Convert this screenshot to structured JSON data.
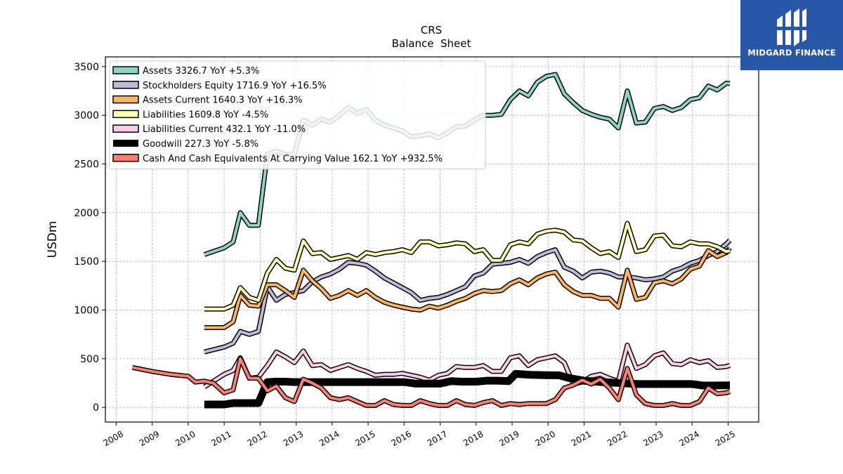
{
  "brand": {
    "name": "MIDGARD FINANCE",
    "bg_color": "#2a56a8"
  },
  "chart_data": {
    "type": "line",
    "title": "CRS",
    "subtitle": "Balance  Sheet",
    "ylabel": "USDm",
    "xlabel": "",
    "xlim": [
      2007.7,
      2025.85
    ],
    "ylim": [
      -150,
      3600
    ],
    "yticks": [
      0,
      500,
      1000,
      1500,
      2000,
      2500,
      3000,
      3500
    ],
    "xticks": [
      "2008",
      "2009",
      "2010",
      "2011",
      "2012",
      "2013",
      "2014",
      "2015",
      "2016",
      "2017",
      "2018",
      "2019",
      "2020",
      "2021",
      "2022",
      "2023",
      "2024",
      "2025"
    ],
    "grid": true,
    "legend_position": "top-left",
    "series": [
      {
        "name": "Assets  3326.7 YoY +5.3%",
        "color": "#8dd3c7",
        "width": 4,
        "x": [
          2010.45,
          2011.0,
          2011.25,
          2011.45,
          2011.7,
          2011.95,
          2012.2,
          2012.45,
          2012.7,
          2012.95,
          2013.2,
          2013.45,
          2013.7,
          2013.95,
          2014.2,
          2014.45,
          2014.7,
          2014.95,
          2015.2,
          2015.45,
          2015.7,
          2015.95,
          2016.2,
          2016.45,
          2016.7,
          2016.95,
          2017.2,
          2017.45,
          2017.7,
          2017.95,
          2018.2,
          2018.45,
          2018.7,
          2018.95,
          2019.2,
          2019.45,
          2019.7,
          2019.95,
          2020.2,
          2020.45,
          2020.7,
          2020.95,
          2021.2,
          2021.45,
          2021.7,
          2021.95,
          2022.2,
          2022.45,
          2022.7,
          2022.95,
          2023.2,
          2023.45,
          2023.7,
          2023.95,
          2024.2,
          2024.45,
          2024.7,
          2024.95,
          2025.05
        ],
        "y": [
          1570,
          1640,
          1700,
          2000,
          1870,
          1870,
          2600,
          2630,
          2600,
          2600,
          2950,
          2900,
          2960,
          2930,
          3000,
          3080,
          3020,
          3060,
          2950,
          2900,
          2870,
          2840,
          2780,
          2790,
          2810,
          2770,
          2820,
          2880,
          2890,
          2950,
          3000,
          3000,
          3010,
          3160,
          3250,
          3200,
          3340,
          3400,
          3420,
          3220,
          3130,
          3050,
          3010,
          2980,
          2960,
          2870,
          3250,
          2920,
          2930,
          3070,
          3090,
          3050,
          3080,
          3160,
          3180,
          3300,
          3260,
          3330,
          3327
        ]
      },
      {
        "name": "Stockholders Equity  1716.9 YoY +16.5%",
        "color": "#bebada",
        "width": 4,
        "x": [
          2010.45,
          2011.0,
          2011.25,
          2011.45,
          2011.7,
          2011.95,
          2012.2,
          2012.45,
          2012.7,
          2012.95,
          2013.2,
          2013.45,
          2013.7,
          2013.95,
          2014.2,
          2014.45,
          2014.7,
          2014.95,
          2015.2,
          2015.45,
          2015.7,
          2015.95,
          2016.2,
          2016.45,
          2016.7,
          2016.95,
          2017.2,
          2017.45,
          2017.7,
          2017.95,
          2018.2,
          2018.45,
          2018.7,
          2018.95,
          2019.2,
          2019.45,
          2019.7,
          2019.95,
          2020.2,
          2020.45,
          2020.7,
          2020.95,
          2021.2,
          2021.45,
          2021.7,
          2021.95,
          2022.2,
          2022.45,
          2022.7,
          2022.95,
          2023.2,
          2023.45,
          2023.7,
          2023.95,
          2024.2,
          2024.45,
          2024.7,
          2024.95,
          2025.05
        ],
        "y": [
          570,
          620,
          660,
          780,
          750,
          780,
          1240,
          1100,
          1160,
          1180,
          1200,
          1290,
          1340,
          1370,
          1420,
          1490,
          1480,
          1460,
          1400,
          1330,
          1280,
          1230,
          1180,
          1100,
          1120,
          1130,
          1160,
          1200,
          1240,
          1350,
          1380,
          1470,
          1480,
          1490,
          1520,
          1480,
          1550,
          1590,
          1620,
          1440,
          1400,
          1330,
          1390,
          1400,
          1380,
          1340,
          1340,
          1330,
          1310,
          1320,
          1340,
          1400,
          1430,
          1480,
          1510,
          1560,
          1600,
          1680,
          1717
        ]
      },
      {
        "name": "Assets Current  1640.3 YoY +16.3%",
        "color": "#fdb462",
        "width": 4,
        "x": [
          2010.45,
          2011.0,
          2011.25,
          2011.45,
          2011.7,
          2011.95,
          2012.2,
          2012.45,
          2012.7,
          2012.95,
          2013.2,
          2013.45,
          2013.7,
          2013.95,
          2014.2,
          2014.45,
          2014.7,
          2014.95,
          2015.2,
          2015.45,
          2015.7,
          2015.95,
          2016.2,
          2016.45,
          2016.7,
          2016.95,
          2017.2,
          2017.45,
          2017.7,
          2017.95,
          2018.2,
          2018.45,
          2018.7,
          2018.95,
          2019.2,
          2019.45,
          2019.7,
          2019.95,
          2020.2,
          2020.45,
          2020.7,
          2020.95,
          2021.2,
          2021.45,
          2021.7,
          2021.95,
          2022.2,
          2022.45,
          2022.7,
          2022.95,
          2023.2,
          2023.45,
          2023.7,
          2023.95,
          2024.2,
          2024.45,
          2024.7,
          2024.95,
          2025.05
        ],
        "y": [
          820,
          820,
          880,
          1150,
          1050,
          1040,
          1260,
          1260,
          1200,
          1130,
          1410,
          1300,
          1220,
          1120,
          1150,
          1200,
          1150,
          1200,
          1130,
          1080,
          1050,
          1030,
          1010,
          1000,
          1040,
          1020,
          1050,
          1090,
          1120,
          1170,
          1200,
          1190,
          1200,
          1270,
          1310,
          1260,
          1330,
          1370,
          1390,
          1260,
          1190,
          1150,
          1150,
          1120,
          1120,
          1030,
          1410,
          1110,
          1130,
          1280,
          1300,
          1270,
          1320,
          1420,
          1450,
          1610,
          1550,
          1590,
          1640
        ]
      },
      {
        "name": "Liabilities  1609.8 YoY -4.5%",
        "color": "#ffffb3",
        "width": 4,
        "x": [
          2010.45,
          2011.0,
          2011.25,
          2011.45,
          2011.7,
          2011.95,
          2012.2,
          2012.45,
          2012.7,
          2012.95,
          2013.2,
          2013.45,
          2013.7,
          2013.95,
          2014.2,
          2014.45,
          2014.7,
          2014.95,
          2015.2,
          2015.45,
          2015.7,
          2015.95,
          2016.2,
          2016.45,
          2016.7,
          2016.95,
          2017.2,
          2017.45,
          2017.7,
          2017.95,
          2018.2,
          2018.45,
          2018.7,
          2018.95,
          2019.2,
          2019.45,
          2019.7,
          2019.95,
          2020.2,
          2020.45,
          2020.7,
          2020.95,
          2021.2,
          2021.45,
          2021.7,
          2021.95,
          2022.2,
          2022.45,
          2022.7,
          2022.95,
          2023.2,
          2023.45,
          2023.7,
          2023.95,
          2024.2,
          2024.45,
          2024.7,
          2024.95,
          2025.05
        ],
        "y": [
          1010,
          1010,
          1050,
          1230,
          1130,
          1100,
          1380,
          1520,
          1430,
          1410,
          1710,
          1580,
          1590,
          1520,
          1540,
          1560,
          1520,
          1590,
          1570,
          1590,
          1600,
          1620,
          1590,
          1700,
          1700,
          1660,
          1670,
          1690,
          1680,
          1600,
          1620,
          1510,
          1510,
          1670,
          1700,
          1680,
          1780,
          1810,
          1820,
          1800,
          1720,
          1710,
          1640,
          1580,
          1600,
          1540,
          1890,
          1600,
          1620,
          1760,
          1770,
          1660,
          1650,
          1700,
          1680,
          1680,
          1650,
          1600,
          1610
        ]
      },
      {
        "name": "Liabilities Current  432.1 YoY -11.0%",
        "color": "#fccde5",
        "width": 4,
        "x": [
          2010.45,
          2011.0,
          2011.25,
          2011.45,
          2011.7,
          2011.95,
          2012.2,
          2012.45,
          2012.7,
          2012.95,
          2013.2,
          2013.45,
          2013.7,
          2013.95,
          2014.2,
          2014.45,
          2014.7,
          2014.95,
          2015.2,
          2015.45,
          2015.7,
          2015.95,
          2016.2,
          2016.45,
          2016.7,
          2016.95,
          2017.2,
          2017.45,
          2017.7,
          2017.95,
          2018.2,
          2018.45,
          2018.7,
          2018.95,
          2019.2,
          2019.45,
          2019.7,
          2019.95,
          2020.2,
          2020.45,
          2020.7,
          2020.95,
          2021.2,
          2021.45,
          2021.7,
          2021.95,
          2022.2,
          2022.45,
          2022.7,
          2022.95,
          2023.2,
          2023.45,
          2023.7,
          2023.95,
          2024.2,
          2024.45,
          2024.7,
          2024.95,
          2025.05
        ],
        "y": [
          210,
          340,
          380,
          510,
          300,
          310,
          430,
          570,
          520,
          460,
          580,
          430,
          440,
          380,
          410,
          440,
          400,
          370,
          330,
          340,
          340,
          350,
          330,
          310,
          280,
          330,
          350,
          420,
          410,
          410,
          430,
          370,
          370,
          510,
          530,
          430,
          490,
          510,
          530,
          460,
          240,
          260,
          320,
          340,
          300,
          270,
          640,
          400,
          440,
          530,
          560,
          450,
          440,
          490,
          460,
          480,
          410,
          420,
          432
        ]
      },
      {
        "name": "Goodwill  227.3 YoY -5.8%",
        "color": "#000000",
        "width": 8,
        "x": [
          2010.45,
          2011.0,
          2011.25,
          2011.45,
          2011.7,
          2011.95,
          2012.2,
          2012.45,
          2012.7,
          2012.95,
          2013.5,
          2014.0,
          2014.5,
          2015.0,
          2015.5,
          2016.0,
          2016.3,
          2016.6,
          2017.0,
          2017.3,
          2017.6,
          2018.0,
          2018.3,
          2018.6,
          2018.9,
          2019.1,
          2019.5,
          2020.0,
          2020.3,
          2020.6,
          2021.0,
          2021.5,
          2022.0,
          2022.5,
          2023.0,
          2023.5,
          2024.0,
          2024.3,
          2024.6,
          2025.05
        ],
        "y": [
          30,
          30,
          45,
          45,
          45,
          45,
          260,
          265,
          265,
          260,
          260,
          260,
          260,
          260,
          260,
          260,
          245,
          245,
          245,
          270,
          265,
          265,
          275,
          275,
          270,
          345,
          335,
          330,
          330,
          300,
          275,
          260,
          250,
          240,
          240,
          240,
          240,
          225,
          225,
          227
        ]
      },
      {
        "name": "Cash And Cash Equivalents At Carrying Value  162.1 YoY +932.5%",
        "color": "#fb8072",
        "width": 4,
        "x": [
          2008.45,
          2009.0,
          2009.5,
          2010.0,
          2010.2,
          2010.45,
          2010.7,
          2011.0,
          2011.25,
          2011.45,
          2011.7,
          2011.95,
          2012.2,
          2012.45,
          2012.7,
          2012.95,
          2013.2,
          2013.45,
          2013.7,
          2013.95,
          2014.2,
          2014.45,
          2014.7,
          2014.95,
          2015.2,
          2015.45,
          2015.7,
          2015.95,
          2016.2,
          2016.45,
          2016.7,
          2016.95,
          2017.2,
          2017.45,
          2017.7,
          2017.95,
          2018.2,
          2018.45,
          2018.7,
          2018.95,
          2019.2,
          2019.45,
          2019.7,
          2019.95,
          2020.2,
          2020.45,
          2020.7,
          2020.95,
          2021.2,
          2021.45,
          2021.7,
          2021.95,
          2022.2,
          2022.45,
          2022.7,
          2022.95,
          2023.2,
          2023.45,
          2023.7,
          2023.95,
          2024.2,
          2024.45,
          2024.7,
          2024.95,
          2025.05
        ],
        "y": [
          410,
          370,
          340,
          320,
          260,
          270,
          250,
          150,
          180,
          500,
          300,
          300,
          170,
          220,
          100,
          60,
          290,
          250,
          200,
          100,
          80,
          100,
          60,
          20,
          20,
          70,
          30,
          20,
          20,
          70,
          40,
          20,
          20,
          70,
          30,
          20,
          50,
          70,
          20,
          40,
          30,
          40,
          40,
          40,
          80,
          200,
          230,
          280,
          240,
          290,
          200,
          80,
          400,
          130,
          40,
          20,
          20,
          40,
          20,
          20,
          60,
          200,
          140,
          150,
          162
        ]
      }
    ]
  }
}
